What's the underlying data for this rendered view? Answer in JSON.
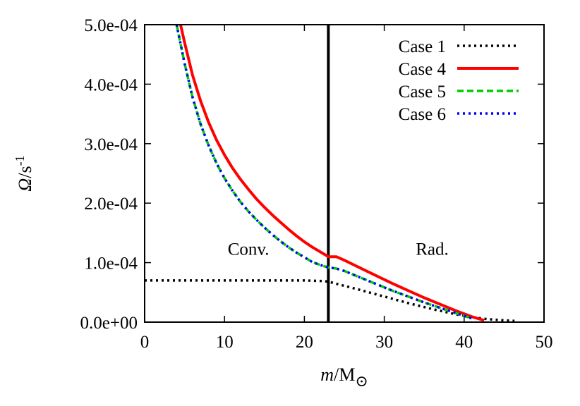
{
  "chart_data": {
    "type": "line",
    "xlabel": {
      "italic": "m",
      "rest": "/M",
      "sub": "⊙"
    },
    "ylabel": {
      "italic": "Ω",
      "rest": "/s",
      "sup": "-1"
    },
    "xlim": [
      0,
      50
    ],
    "ylim": [
      0,
      0.0005
    ],
    "xticks": [
      0,
      10,
      20,
      30,
      40,
      50
    ],
    "xtick_labels": [
      "0",
      "10",
      "20",
      "30",
      "40",
      "50"
    ],
    "yticks": [
      0,
      0.0001,
      0.0002,
      0.0003,
      0.0004,
      0.0005
    ],
    "ytick_labels": [
      "0.0e+00",
      "1.0e-04",
      "2.0e-04",
      "3.0e-04",
      "4.0e-04",
      "5.0e-04"
    ],
    "grid": false,
    "legend_position": "top-right",
    "vline_x": 23,
    "annotations": [
      {
        "text": "Conv.",
        "x": 13,
        "y": 0.000113
      },
      {
        "text": "Rad.",
        "x": 36,
        "y": 0.000113
      }
    ],
    "series": [
      {
        "name": "Case 1",
        "color": "#000000",
        "dash": "dotted",
        "x": [
          0,
          5,
          10,
          15,
          20,
          22.5,
          23,
          25,
          27,
          30,
          33,
          36,
          39,
          41,
          43,
          45,
          46.3
        ],
        "y": [
          7e-05,
          7e-05,
          7e-05,
          7e-05,
          7e-05,
          6.9e-05,
          6.8e-05,
          6.1e-05,
          5.4e-05,
          4.3e-05,
          3.2e-05,
          2.2e-05,
          1.3e-05,
          8e-06,
          5e-06,
          3e-06,
          2e-06
        ]
      },
      {
        "name": "Case 4",
        "color": "#ff0000",
        "dash": "solid",
        "x": [
          4.5,
          5,
          6,
          7,
          8,
          9,
          10,
          11,
          12,
          13,
          14,
          15,
          16,
          17,
          18,
          19,
          20,
          21,
          22,
          23,
          24,
          25,
          27,
          29,
          31,
          33,
          35,
          37,
          39,
          41,
          42.5
        ],
        "y": [
          0.0005,
          0.00047,
          0.000415,
          0.000372,
          0.000336,
          0.000306,
          0.000281,
          0.000259,
          0.00024,
          0.000223,
          0.000207,
          0.000193,
          0.00018,
          0.000168,
          0.000156,
          0.000145,
          0.000135,
          0.000126,
          0.000118,
          0.00011,
          0.00011,
          0.000104,
          9.1e-05,
          7.8e-05,
          6.5e-05,
          5.3e-05,
          4.1e-05,
          3e-05,
          1.9e-05,
          9e-06,
          3e-06
        ]
      },
      {
        "name": "Case 5",
        "color": "#00cc00",
        "dash": "dashed",
        "x": [
          4,
          5,
          6,
          7,
          8,
          9,
          10,
          11,
          12,
          13,
          14,
          15,
          16,
          17,
          18,
          19,
          20,
          21,
          22,
          23,
          24,
          25,
          27,
          29,
          31,
          33,
          35,
          37,
          39,
          41
        ],
        "y": [
          0.0005,
          0.000435,
          0.000378,
          0.000333,
          0.000297,
          0.000267,
          0.000242,
          0.000221,
          0.000202,
          0.000186,
          0.000172,
          0.000159,
          0.000147,
          0.000136,
          0.000126,
          0.000117,
          0.000109,
          0.000101,
          9.6e-05,
          9.2e-05,
          9e-05,
          8.6e-05,
          7.5e-05,
          6.4e-05,
          5.3e-05,
          4.3e-05,
          3.3e-05,
          2.4e-05,
          1.5e-05,
          6e-06
        ]
      },
      {
        "name": "Case 6",
        "color": "#0000ff",
        "dash": "dotted",
        "x": [
          4,
          5,
          6,
          7,
          8,
          9,
          10,
          11,
          12,
          13,
          14,
          15,
          16,
          17,
          18,
          19,
          20,
          21,
          22,
          23,
          24,
          25,
          27,
          29,
          31,
          33,
          35,
          37,
          39,
          41
        ],
        "y": [
          0.0005,
          0.000435,
          0.000378,
          0.000333,
          0.000297,
          0.000267,
          0.000242,
          0.000221,
          0.000202,
          0.000186,
          0.000172,
          0.000159,
          0.000147,
          0.000136,
          0.000126,
          0.000117,
          0.000109,
          0.000101,
          9.6e-05,
          9.2e-05,
          9e-05,
          8.6e-05,
          7.5e-05,
          6.4e-05,
          5.3e-05,
          4.3e-05,
          3.3e-05,
          2.4e-05,
          1.5e-05,
          6e-06
        ]
      }
    ]
  }
}
